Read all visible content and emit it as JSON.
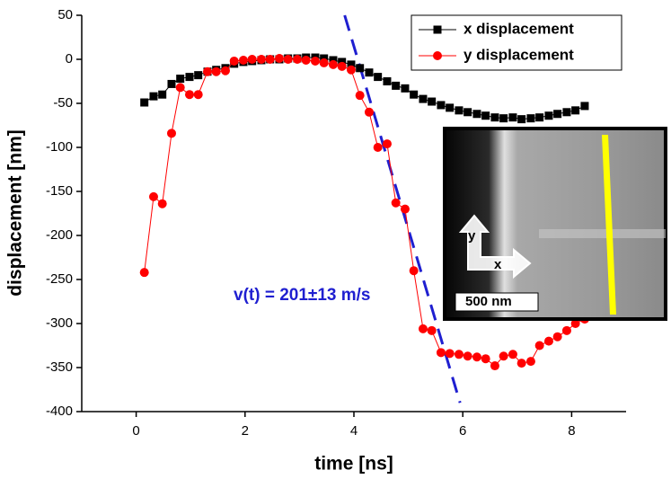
{
  "chart_data": {
    "type": "scatter",
    "xlabel": "time [ns]",
    "ylabel": "displacement [nm]",
    "annotation": "v(t) = 201±13 m/s",
    "xlim": [
      -1,
      9
    ],
    "ylim": [
      -400,
      50
    ],
    "xticks": [
      0,
      2,
      4,
      6,
      8
    ],
    "yticks": [
      50,
      0,
      -50,
      -100,
      -150,
      -200,
      -250,
      -300,
      -350,
      -400
    ],
    "legend": "top-right",
    "x": [
      0.15,
      0.32,
      0.48,
      0.65,
      0.81,
      0.98,
      1.14,
      1.31,
      1.47,
      1.64,
      1.8,
      1.97,
      2.13,
      2.3,
      2.46,
      2.63,
      2.79,
      2.96,
      3.12,
      3.29,
      3.45,
      3.62,
      3.78,
      3.95,
      4.11,
      4.28,
      4.44,
      4.61,
      4.77,
      4.94,
      5.1,
      5.27,
      5.43,
      5.6,
      5.76,
      5.93,
      6.09,
      6.26,
      6.42,
      6.59,
      6.75,
      6.92,
      7.08,
      7.25,
      7.41,
      7.58,
      7.74,
      7.91,
      8.07,
      8.24
    ],
    "series": [
      {
        "name": "x displacement",
        "color": "#000000",
        "marker": "square",
        "values": [
          -49,
          -42,
          -40,
          -28,
          -22,
          -20,
          -18,
          -14,
          -12,
          -10,
          -5,
          -3,
          -2,
          -1,
          0,
          0,
          1,
          1,
          2,
          2,
          1,
          -1,
          -3,
          -6,
          -10,
          -15,
          -20,
          -25,
          -30,
          -33,
          -40,
          -45,
          -48,
          -52,
          -55,
          -58,
          -60,
          -62,
          -64,
          -66,
          -67,
          -66,
          -68,
          -67,
          -66,
          -64,
          -62,
          -60,
          -58,
          -53
        ]
      },
      {
        "name": "y displacement",
        "color": "#ff0000",
        "marker": "circle",
        "values": [
          -242,
          -156,
          -164,
          -84,
          -32,
          -40,
          -40,
          -14,
          -14,
          -13,
          -2,
          -1,
          0,
          0,
          0,
          1,
          0,
          0,
          -1,
          -2,
          -4,
          -6,
          -8,
          -12,
          -41,
          -60,
          -100,
          -96,
          -163,
          -170,
          -240,
          -306,
          -308,
          -333,
          -334,
          -335,
          -337,
          -338,
          -340,
          -348,
          -337,
          -335,
          -345,
          -343,
          -325,
          -320,
          -315,
          -308,
          -300,
          -295
        ]
      }
    ],
    "fit_line": {
      "color": "#1f1fd0",
      "x": [
        3.83,
        5.95
      ],
      "y": [
        50,
        -390
      ]
    },
    "inset": {
      "y_arrow": "y",
      "x_arrow": "x",
      "scale_bar": "500 nm"
    }
  }
}
